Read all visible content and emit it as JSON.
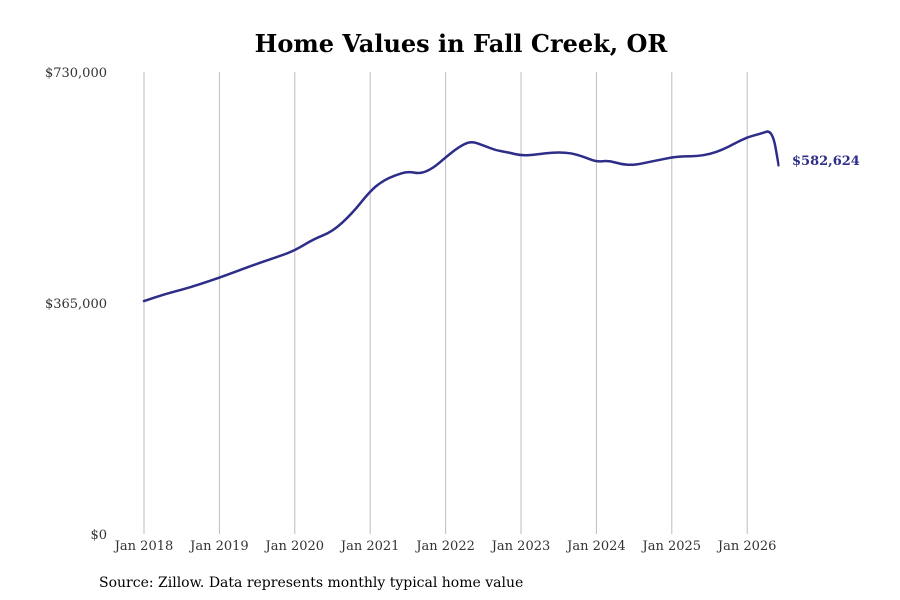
{
  "chart_data": {
    "type": "line",
    "title": "Home Values in Fall Creek, OR",
    "source": "Source: Zillow. Data represents monthly typical home value",
    "ylim": [
      0,
      730000
    ],
    "y_ticks": [
      {
        "value": 0,
        "label": "$0"
      },
      {
        "value": 365000,
        "label": "$365,000"
      },
      {
        "value": 730000,
        "label": "$730,000"
      }
    ],
    "x_ticks": [
      {
        "value": "2018-01",
        "label": "Jan 2018"
      },
      {
        "value": "2019-01",
        "label": "Jan 2019"
      },
      {
        "value": "2020-01",
        "label": "Jan 2020"
      },
      {
        "value": "2021-01",
        "label": "Jan 2021"
      },
      {
        "value": "2022-01",
        "label": "Jan 2022"
      },
      {
        "value": "2023-01",
        "label": "Jan 2023"
      },
      {
        "value": "2024-01",
        "label": "Jan 2024"
      },
      {
        "value": "2025-01",
        "label": "Jan 2025"
      },
      {
        "value": "2026-01",
        "label": "Jan 2026"
      }
    ],
    "grid": "vertical",
    "line_color": "#2e2d88",
    "end_label": "$582,624",
    "series": [
      {
        "x": [
          "2018-01",
          "2018-04",
          "2018-07",
          "2018-10",
          "2019-01",
          "2019-04",
          "2019-07",
          "2019-10",
          "2020-01",
          "2020-04",
          "2020-07",
          "2020-10",
          "2021-01",
          "2021-03",
          "2021-05",
          "2021-07",
          "2021-09",
          "2021-11",
          "2022-01",
          "2022-03",
          "2022-05",
          "2022-07",
          "2022-09",
          "2022-11",
          "2023-01",
          "2023-03",
          "2023-05",
          "2023-07",
          "2023-09",
          "2023-11",
          "2024-01",
          "2024-03",
          "2024-05",
          "2024-07",
          "2024-09",
          "2024-11",
          "2025-01",
          "2025-03",
          "2025-05",
          "2025-07",
          "2025-09",
          "2025-11",
          "2026-01",
          "2026-03",
          "2026-05",
          "2026-06"
        ],
        "y": [
          368000,
          378000,
          386000,
          395000,
          405000,
          416000,
          427000,
          437000,
          448000,
          466000,
          478000,
          505000,
          542000,
          558000,
          567000,
          573000,
          569000,
          578000,
          595000,
          611000,
          621000,
          614000,
          606000,
          603000,
          598000,
          599000,
          602000,
          603000,
          602000,
          596000,
          588000,
          590000,
          584000,
          583000,
          587000,
          591000,
          595000,
          597000,
          597000,
          600000,
          607000,
          617000,
          627000,
          632000,
          639000,
          582624
        ]
      }
    ]
  }
}
